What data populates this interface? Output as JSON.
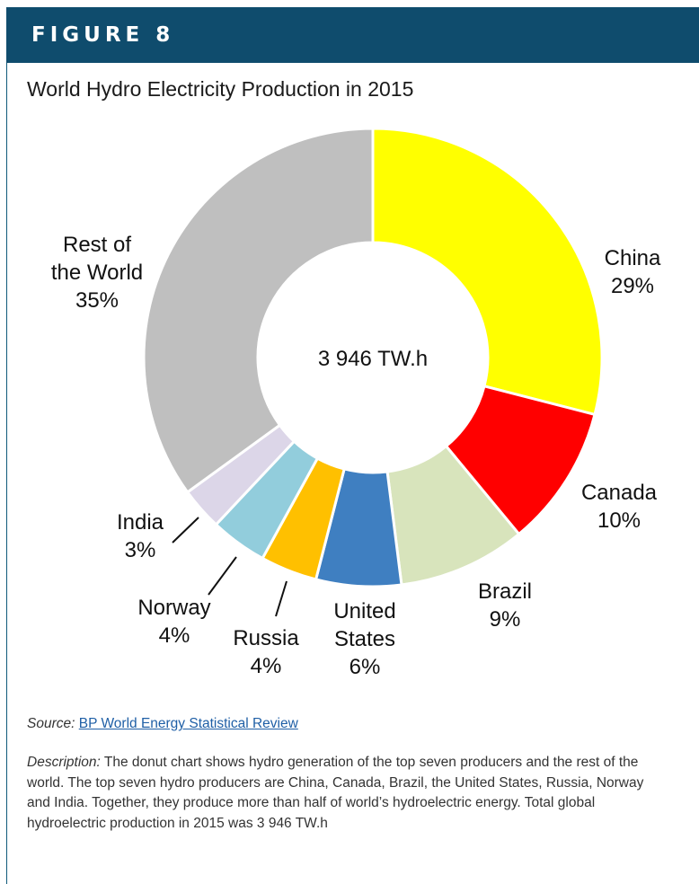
{
  "header": {
    "title": "FIGURE 8"
  },
  "chart_data": {
    "type": "pie",
    "title": "World Hydro Electricity Production in 2015",
    "center_label": "3 946 TW.h",
    "slices": [
      {
        "label_lines": [
          "China",
          "29%"
        ],
        "value": 29,
        "color": "#ffff00"
      },
      {
        "label_lines": [
          "Canada",
          "10%"
        ],
        "value": 10,
        "color": "#ff0000"
      },
      {
        "label_lines": [
          "Brazil",
          "9%"
        ],
        "value": 9,
        "color": "#d8e4bc"
      },
      {
        "label_lines": [
          "United",
          "States",
          "6%"
        ],
        "value": 6,
        "color": "#3f7fc1"
      },
      {
        "label_lines": [
          "Russia",
          "4%"
        ],
        "value": 4,
        "color": "#ffc000"
      },
      {
        "label_lines": [
          "Norway",
          "4%"
        ],
        "value": 4,
        "color": "#92cddc"
      },
      {
        "label_lines": [
          "India",
          "3%"
        ],
        "value": 3,
        "color": "#dcd6e8"
      },
      {
        "label_lines": [
          "Rest of",
          "the World",
          "35%"
        ],
        "value": 35,
        "color": "#bfbfbf"
      }
    ]
  },
  "source": {
    "label": "Source:",
    "link_text": "BP World Energy Statistical Review"
  },
  "description": {
    "label": "Description:",
    "text": " The donut chart shows hydro generation of the top seven producers and the rest of the world. The top seven hydro producers are China, Canada, Brazil, the United States, Russia, Norway and India. Together, they produce more than half of world’s hydroelectric energy. Total global hydroelectric production in 2015 was 3 946 TW.h"
  },
  "colors": {
    "header_bg": "#0f4c6d",
    "link": "#1f5fa6"
  }
}
